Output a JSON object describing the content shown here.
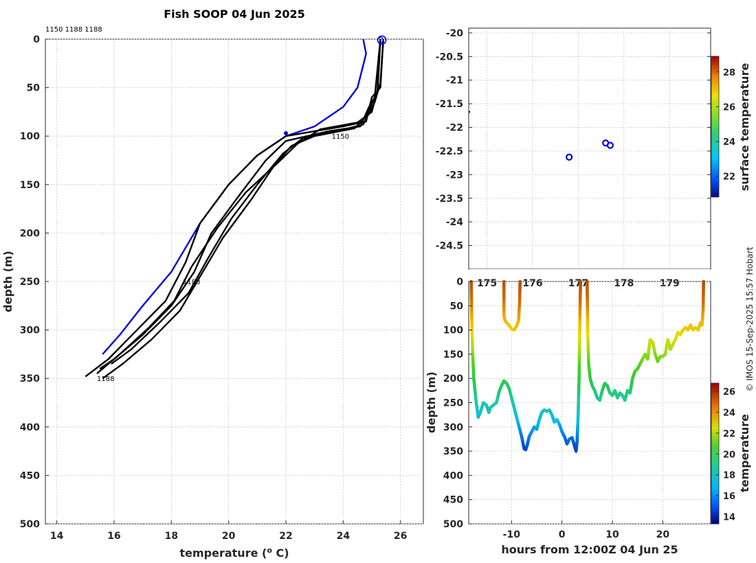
{
  "chart_data": [
    {
      "type": "line",
      "title": "Fish SOOP 04 Jun 2025",
      "xlabel_text": "temperature (",
      "xlabel_sup": "o",
      "xlabel_tail": " C)",
      "ylabel": "depth (m)",
      "xlim": [
        13.6,
        26.8
      ],
      "ylim": [
        500,
        0
      ],
      "xticks": [
        14,
        16,
        18,
        20,
        22,
        24,
        26
      ],
      "yticks": [
        0,
        50,
        100,
        150,
        200,
        250,
        300,
        350,
        400,
        450,
        500
      ],
      "top_note": "1150 1188 1188",
      "series": [
        {
          "name": "blue reference profile",
          "color": "#0000dd",
          "x": [
            24.7,
            24.8,
            24.5,
            24.0,
            23.0,
            22.0,
            21.0,
            20.0,
            19.0,
            18.0,
            17.0,
            16.2,
            15.6
          ],
          "y": [
            0,
            15,
            50,
            70,
            90,
            100,
            120,
            150,
            190,
            240,
            275,
            305,
            325
          ]
        },
        {
          "name": "profile 1",
          "color": "#000000",
          "x": [
            25.4,
            25.3,
            25.0,
            24.8,
            24.0,
            22.0,
            21.0,
            20.0,
            19.0,
            18.5,
            17.8,
            16.8,
            15.8,
            15.0
          ],
          "y": [
            0,
            50,
            60,
            85,
            90,
            100,
            120,
            150,
            190,
            230,
            270,
            300,
            330,
            348
          ]
        },
        {
          "name": "profile 2",
          "color": "#000000",
          "x": [
            25.3,
            25.2,
            24.9,
            24.6,
            23.5,
            22.0,
            21.3,
            20.4,
            19.4,
            18.8,
            18.0,
            17.0,
            16.0,
            15.5
          ],
          "y": [
            0,
            55,
            70,
            90,
            95,
            105,
            125,
            160,
            200,
            240,
            275,
            305,
            330,
            340
          ]
        },
        {
          "name": "profile 3",
          "color": "#000000",
          "x": [
            25.3,
            25.1,
            24.8,
            24.4,
            23.0,
            22.2,
            21.6,
            20.8,
            19.8,
            19.0,
            18.3,
            17.3,
            16.3,
            15.6
          ],
          "y": [
            0,
            60,
            80,
            92,
            100,
            110,
            130,
            165,
            205,
            245,
            280,
            310,
            335,
            350
          ]
        },
        {
          "name": "profile 4",
          "color": "#000000",
          "x": [
            25.4,
            25.3,
            25.1,
            24.7,
            23.8,
            22.6,
            21.9,
            21.0,
            20.1,
            19.3,
            18.6,
            17.6,
            16.6,
            15.9
          ],
          "y": [
            0,
            45,
            65,
            88,
            95,
            102,
            118,
            150,
            185,
            225,
            262,
            292,
            320,
            335
          ]
        },
        {
          "name": "profile 5",
          "color": "#000000",
          "x": [
            25.3,
            25.2,
            25.0,
            24.5,
            23.2,
            22.4,
            21.7,
            20.6,
            19.6,
            18.7,
            18.1,
            17.2,
            16.2,
            15.4
          ],
          "y": [
            0,
            52,
            75,
            86,
            93,
            108,
            128,
            158,
            195,
            235,
            270,
            298,
            325,
            345
          ]
        }
      ],
      "labels": [
        {
          "text": "1150",
          "x": 23.6,
          "y": 100
        },
        {
          "text": "1188",
          "x": 18.4,
          "y": 250
        },
        {
          "text": "1188",
          "x": 15.4,
          "y": 350
        }
      ]
    },
    {
      "type": "scatter",
      "title": "",
      "xlim": [
        174.6,
        179.9
      ],
      "ylim": [
        -25.0,
        -19.9
      ],
      "yticks": [
        -20,
        -20.5,
        -21,
        -21.5,
        -22,
        -22.5,
        -23,
        -23.5,
        -24,
        -24.5
      ],
      "xticks_partial": [
        "175",
        "176",
        "177",
        "178",
        "179"
      ],
      "points": [
        {
          "x": 176.8,
          "y": -22.63
        },
        {
          "x": 177.6,
          "y": -22.33
        },
        {
          "x": 177.7,
          "y": -22.38
        }
      ],
      "colorbar": {
        "label": "surface temperature",
        "ticks": [
          22,
          24,
          26,
          28
        ],
        "range": [
          20.8,
          28.9
        ]
      }
    },
    {
      "type": "scatter",
      "xlabel": "hours from 12:00Z 04 Jun 25",
      "ylabel": "depth (m)",
      "xlim": [
        -18.5,
        29.5
      ],
      "ylim": [
        500,
        0
      ],
      "xticks": [
        -10,
        0,
        10,
        20
      ],
      "yticks": [
        0,
        50,
        100,
        150,
        200,
        250,
        300,
        350,
        400,
        450,
        500
      ],
      "colorbar": {
        "label": "temperature",
        "ticks": [
          14,
          16,
          18,
          20,
          22,
          24,
          26
        ],
        "range": [
          13.3,
          26.8
        ]
      },
      "tracks": [
        {
          "x": [
            -18.0,
            -17.9,
            -17.7,
            -17.5,
            -17.0,
            -16.6,
            -16.2,
            -15.6,
            -15.0,
            -14.5,
            -14.2,
            -13.6,
            -13.0,
            -12.4,
            -12.0,
            -11.5,
            -11.0,
            -10.5,
            -10.0,
            -9.5,
            -9.0,
            -8.5,
            -8.0,
            -7.5,
            -7.2,
            -6.9,
            -6.5,
            -6.0,
            -5.5,
            -5.0,
            -4.5,
            -4.0,
            -3.5,
            -3.0,
            -2.5,
            -2.0,
            -1.5,
            -1.0,
            -0.5,
            0.0,
            0.5,
            1.0,
            1.5,
            2.0,
            2.5,
            2.8,
            3.0,
            3.2,
            3.4,
            3.5,
            3.6,
            3.7
          ],
          "y": [
            0,
            80,
            150,
            200,
            250,
            280,
            270,
            250,
            255,
            270,
            260,
            255,
            250,
            225,
            215,
            205,
            210,
            220,
            240,
            260,
            280,
            300,
            320,
            345,
            347,
            338,
            320,
            310,
            300,
            305,
            285,
            270,
            265,
            268,
            265,
            275,
            290,
            285,
            295,
            310,
            320,
            335,
            325,
            322,
            340,
            350,
            330,
            280,
            200,
            120,
            40,
            0
          ]
        },
        {
          "x": [
            -11.5,
            -11.5,
            -11.3,
            -11.0,
            -10.5,
            -10.0,
            -9.5,
            -9.0,
            -8.6,
            -8.4,
            -8.3
          ],
          "y": [
            0,
            70,
            80,
            85,
            90,
            98,
            100,
            92,
            80,
            40,
            0
          ]
        },
        {
          "x": [
            5.0,
            5.1,
            5.3,
            5.6,
            6.0,
            6.5,
            7.0,
            7.5,
            8.0,
            8.5,
            9.0,
            9.5,
            10.0,
            10.5,
            11.0,
            11.5,
            12.0,
            12.5,
            13.0,
            13.5,
            14.0,
            14.5,
            15.0,
            15.5,
            16.0,
            16.5,
            17.0,
            17.5,
            18.0,
            18.5,
            19.0,
            19.5,
            20.0,
            20.5,
            21.0,
            21.5,
            22.0,
            22.5,
            23.0,
            23.5,
            24.0,
            24.5,
            25.0,
            25.5,
            26.0,
            26.5,
            27.0,
            27.5,
            27.8,
            28.0,
            28.1
          ],
          "y": [
            0,
            100,
            170,
            200,
            215,
            225,
            240,
            245,
            225,
            210,
            215,
            230,
            235,
            225,
            240,
            230,
            235,
            245,
            225,
            230,
            200,
            185,
            180,
            170,
            160,
            150,
            160,
            120,
            125,
            150,
            165,
            155,
            155,
            150,
            120,
            140,
            130,
            120,
            105,
            110,
            100,
            95,
            100,
            90,
            100,
            95,
            100,
            85,
            90,
            60,
            0
          ]
        }
      ]
    }
  ],
  "credit": "© IMOS 15-Sep-2025 15:57 Hobart"
}
